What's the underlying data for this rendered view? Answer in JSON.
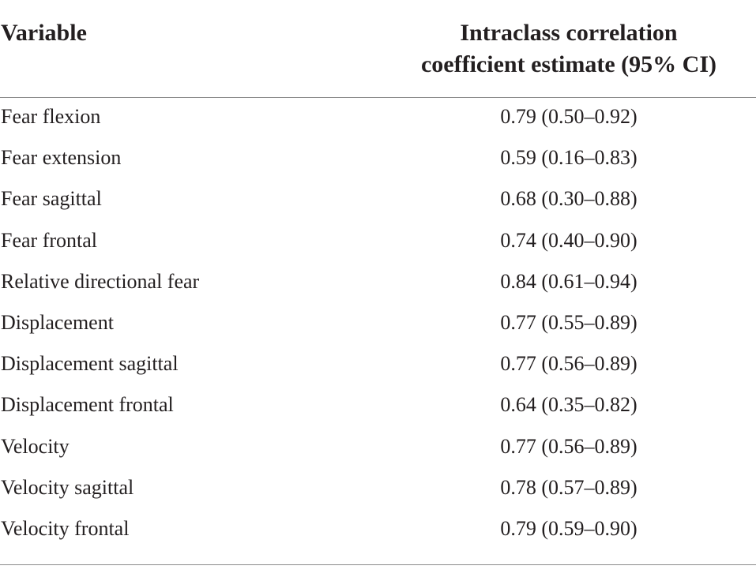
{
  "table": {
    "headers": {
      "variable": "Variable",
      "icc_line1": "Intraclass correlation",
      "icc_line2": "coefficient estimate (95% CI)"
    },
    "rows": [
      {
        "variable": "Fear flexion",
        "value": "0.79 (0.50–0.92)"
      },
      {
        "variable": "Fear extension",
        "value": "0.59 (0.16–0.83)"
      },
      {
        "variable": "Fear sagittal",
        "value": "0.68 (0.30–0.88)"
      },
      {
        "variable": "Fear frontal",
        "value": "0.74 (0.40–0.90)"
      },
      {
        "variable": "Relative directional fear",
        "value": "0.84 (0.61–0.94)"
      },
      {
        "variable": "Displacement",
        "value": "0.77 (0.55–0.89)"
      },
      {
        "variable": "Displacement sagittal",
        "value": "0.77 (0.56–0.89)"
      },
      {
        "variable": "Displacement frontal",
        "value": "0.64 (0.35–0.82)"
      },
      {
        "variable": "Velocity",
        "value": "0.77 (0.56–0.89)"
      },
      {
        "variable": "Velocity sagittal",
        "value": "0.78 (0.57–0.89)"
      },
      {
        "variable": "Velocity frontal",
        "value": "0.79 (0.59–0.90)"
      }
    ]
  }
}
